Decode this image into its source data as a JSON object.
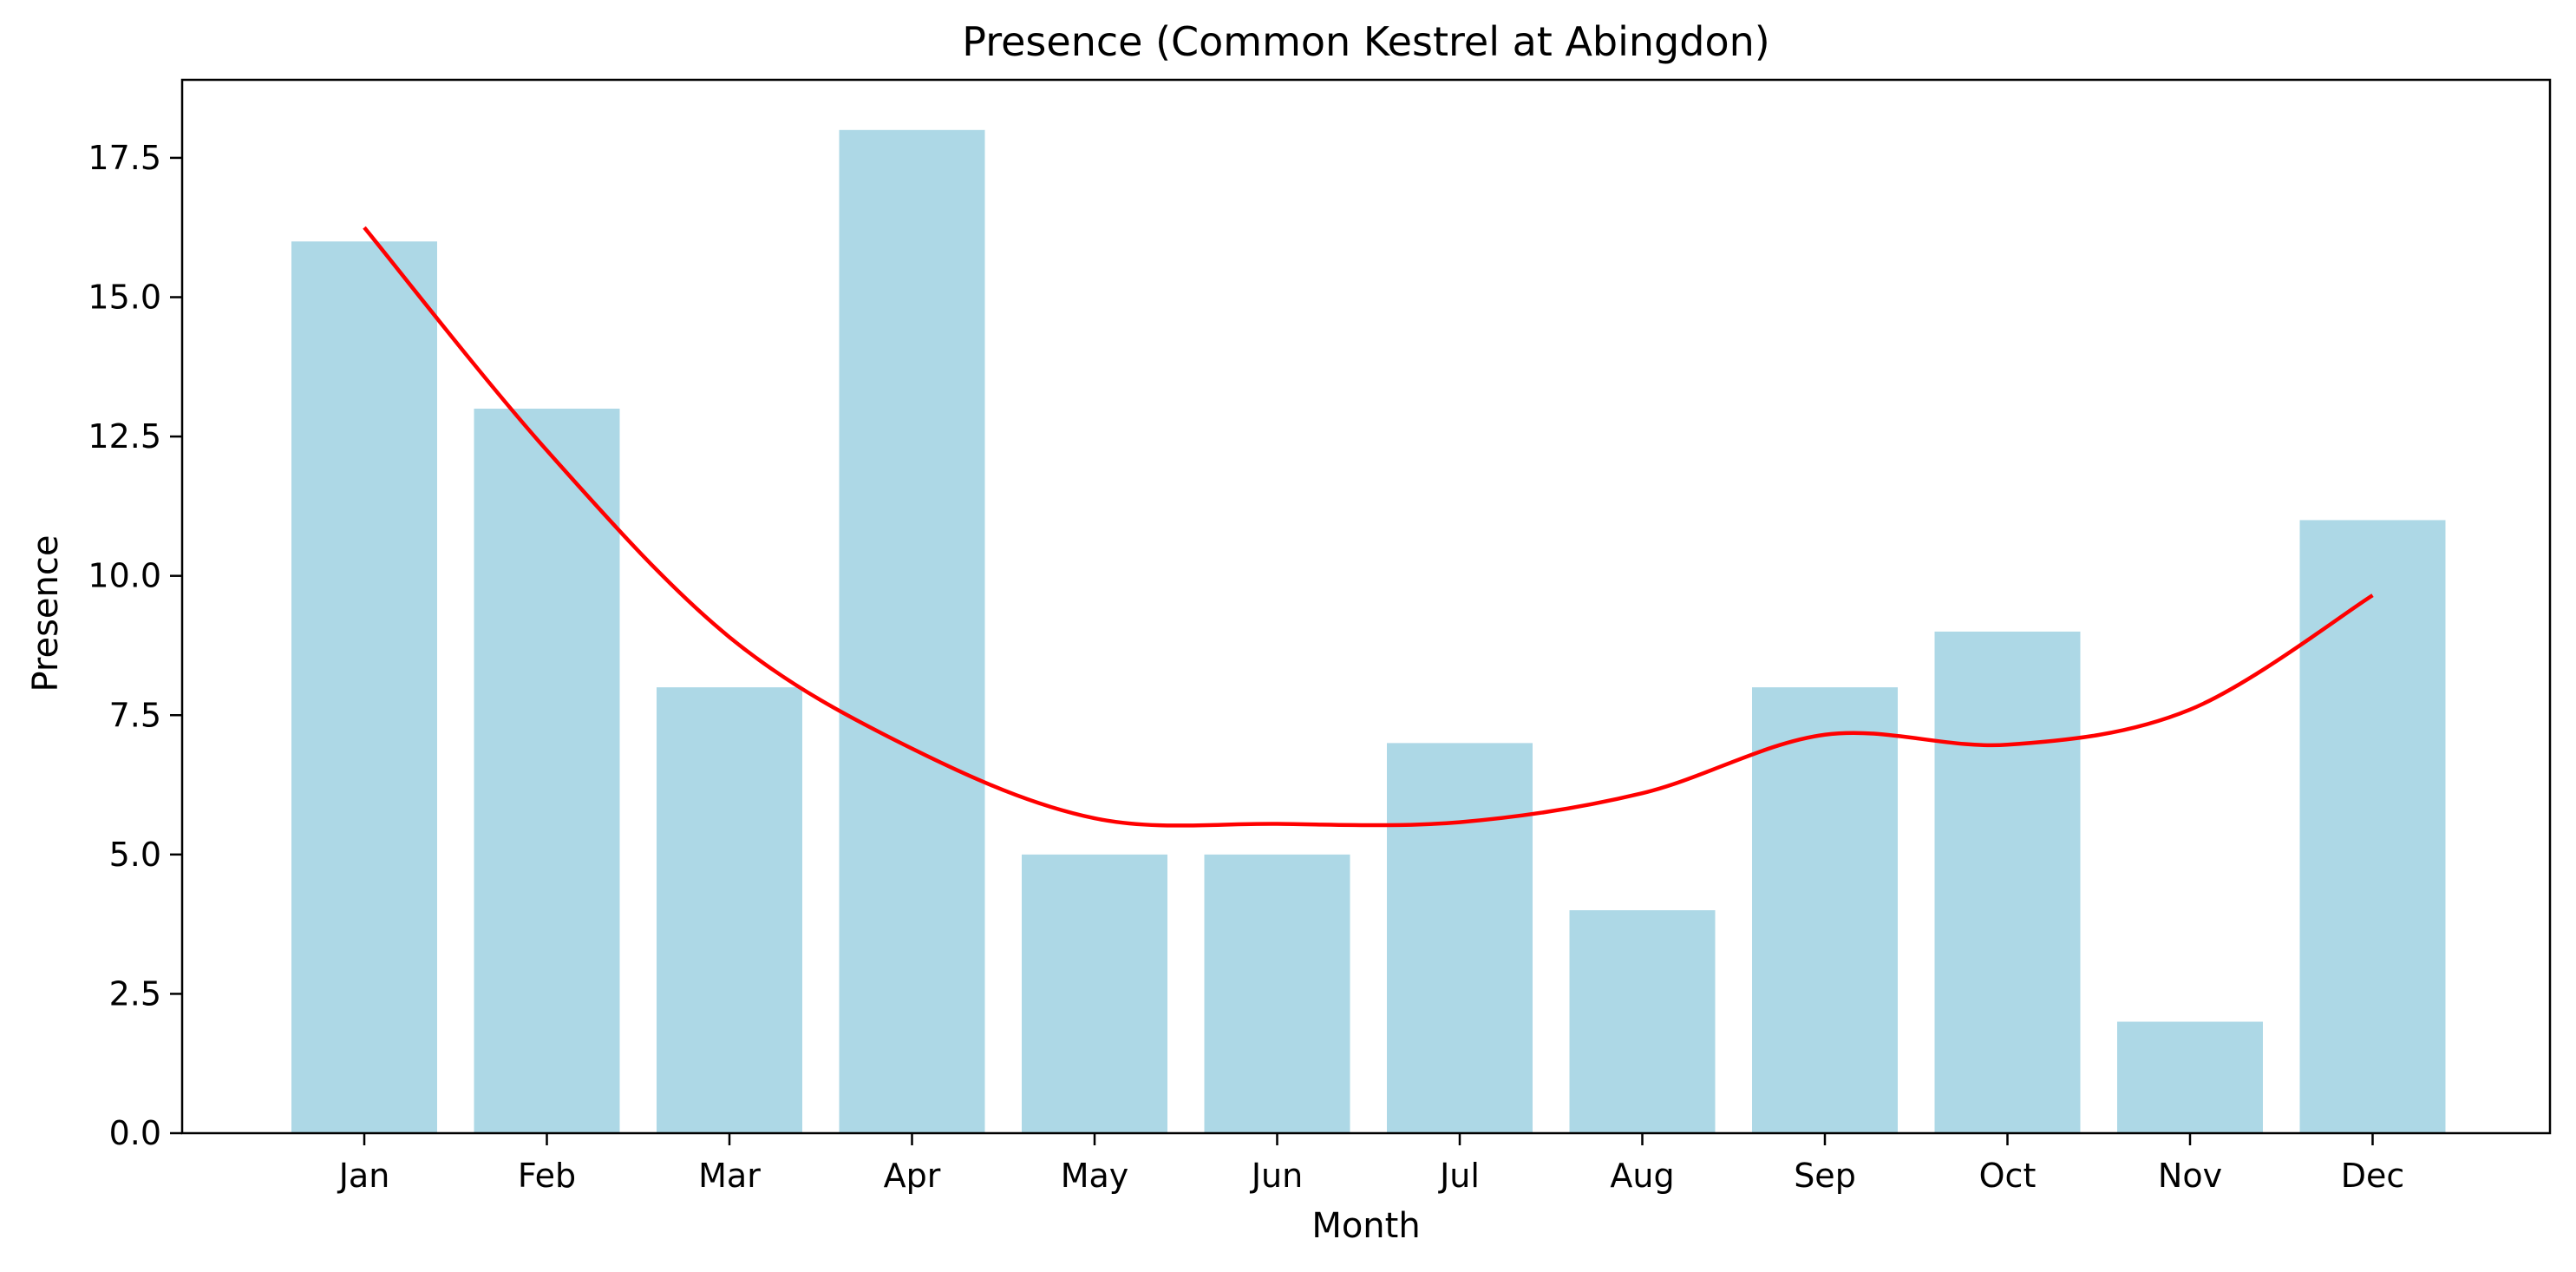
{
  "chart_data": {
    "type": "bar",
    "title": "Presence (Common Kestrel at Abingdon)",
    "xlabel": "Month",
    "ylabel": "Presence",
    "categories": [
      "Jan",
      "Feb",
      "Mar",
      "Apr",
      "May",
      "Jun",
      "Jul",
      "Aug",
      "Sep",
      "Oct",
      "Nov",
      "Dec"
    ],
    "series": [
      {
        "type": "bar",
        "color": "#add8e6",
        "values": [
          16,
          13,
          8,
          18,
          5,
          5,
          7,
          4,
          8,
          9,
          2,
          11
        ]
      },
      {
        "type": "line",
        "color": "#ff0000",
        "values": [
          16.25,
          12.25,
          8.9,
          6.9,
          5.65,
          5.55,
          5.58,
          6.1,
          7.15,
          6.97,
          7.6,
          9.65
        ]
      }
    ],
    "ylim": [
      0,
      18.9
    ],
    "yticks": [
      "0.0",
      "2.5",
      "5.0",
      "7.5",
      "10.0",
      "12.5",
      "15.0",
      "17.5"
    ],
    "grid": false,
    "legend": "none"
  }
}
